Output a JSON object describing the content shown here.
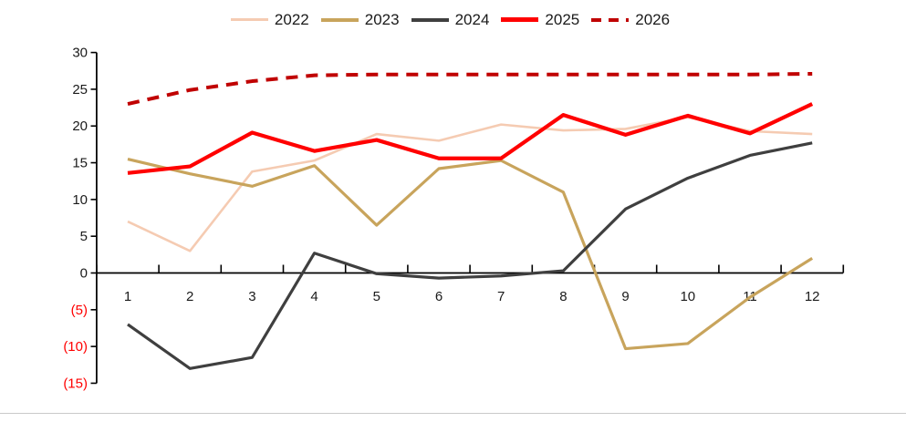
{
  "chart_data": {
    "type": "line",
    "title": "",
    "xlabel": "",
    "ylabel": "",
    "x_categories": [
      "1",
      "2",
      "3",
      "4",
      "5",
      "6",
      "7",
      "8",
      "9",
      "10",
      "11",
      "12"
    ],
    "ylim": [
      -15,
      30
    ],
    "ytick_step": 5,
    "ytick_labels": [
      "30",
      "25",
      "20",
      "15",
      "10",
      "5",
      "0",
      "(5)",
      "(10)",
      "(15)"
    ],
    "grid": false,
    "legend_position": "top-center",
    "axis_color": "#000000",
    "tick_label_color": "#1a1a1a",
    "negative_label_color": "#ff0000",
    "series": [
      {
        "name": "2022",
        "color": "#f5cbb2",
        "dash": false,
        "width": 2.6,
        "values": [
          7.0,
          3.0,
          13.8,
          15.3,
          18.9,
          18.0,
          20.2,
          19.4,
          19.6,
          21.2,
          19.3,
          18.9
        ]
      },
      {
        "name": "2023",
        "color": "#c8a45c",
        "dash": false,
        "width": 3.2,
        "values": [
          15.5,
          13.5,
          11.8,
          14.6,
          6.5,
          14.2,
          15.3,
          11.0,
          -10.3,
          -9.6,
          -3.3,
          2.0
        ]
      },
      {
        "name": "2024",
        "color": "#3f3f3f",
        "dash": false,
        "width": 3.2,
        "values": [
          -7.0,
          -13.0,
          -11.5,
          2.7,
          -0.1,
          -0.7,
          -0.4,
          0.3,
          8.7,
          12.9,
          16.0,
          17.7
        ]
      },
      {
        "name": "2025",
        "color": "#ff0000",
        "dash": false,
        "width": 4.2,
        "values": [
          13.6,
          14.5,
          19.1,
          16.6,
          18.1,
          15.6,
          15.6,
          21.5,
          18.8,
          21.4,
          19.0,
          23.0
        ]
      },
      {
        "name": "2026",
        "color": "#c00000",
        "dash": true,
        "width": 4.0,
        "values": [
          23.0,
          24.9,
          26.1,
          26.9,
          27.0,
          27.0,
          27.0,
          27.0,
          27.0,
          27.0,
          27.0,
          27.1
        ]
      }
    ]
  },
  "legend": {
    "items": [
      {
        "label": "2022",
        "color": "#f5cbb2",
        "dash": false,
        "thickness": 3
      },
      {
        "label": "2023",
        "color": "#c8a45c",
        "dash": false,
        "thickness": 4
      },
      {
        "label": "2024",
        "color": "#3f3f3f",
        "dash": false,
        "thickness": 4
      },
      {
        "label": "2025",
        "color": "#ff0000",
        "dash": false,
        "thickness": 5
      },
      {
        "label": "2026",
        "color": "#c00000",
        "dash": true,
        "thickness": 4
      }
    ]
  }
}
